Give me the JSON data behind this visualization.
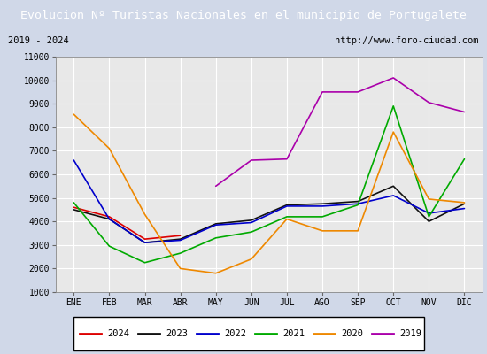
{
  "title": "Evolucion Nº Turistas Nacionales en el municipio de Portugalete",
  "subtitle_left": "2019 - 2024",
  "subtitle_right": "http://www.foro-ciudad.com",
  "months": [
    "ENE",
    "FEB",
    "MAR",
    "ABR",
    "MAY",
    "JUN",
    "JUL",
    "AGO",
    "SEP",
    "OCT",
    "NOV",
    "DIC"
  ],
  "ylim": [
    1000,
    11000
  ],
  "yticks": [
    1000,
    2000,
    3000,
    4000,
    5000,
    6000,
    7000,
    8000,
    9000,
    10000,
    11000
  ],
  "series": {
    "2024": {
      "color": "#dd0000",
      "data": [
        4600,
        4200,
        3250,
        3400,
        null,
        null,
        null,
        null,
        null,
        null,
        null,
        null
      ]
    },
    "2023": {
      "color": "#111111",
      "data": [
        4500,
        4100,
        3100,
        3250,
        3900,
        4050,
        4700,
        4750,
        4850,
        5500,
        4000,
        4750
      ]
    },
    "2022": {
      "color": "#0000cc",
      "data": [
        6600,
        4100,
        3100,
        3200,
        3850,
        3950,
        4650,
        4650,
        4750,
        5100,
        4350,
        4550
      ]
    },
    "2021": {
      "color": "#00aa00",
      "data": [
        4800,
        2950,
        2250,
        2650,
        3300,
        3550,
        4200,
        4200,
        4700,
        8900,
        4200,
        6650
      ]
    },
    "2020": {
      "color": "#ee8800",
      "data": [
        8550,
        7100,
        4300,
        2000,
        1800,
        2400,
        4100,
        3600,
        3600,
        7800,
        4950,
        4800
      ]
    },
    "2019": {
      "color": "#aa00aa",
      "data": [
        null,
        null,
        null,
        null,
        5500,
        6600,
        6650,
        9500,
        9500,
        10100,
        9050,
        8650
      ]
    }
  },
  "title_bg_color": "#4472c4",
  "title_font_color": "#ffffff",
  "plot_bg_color": "#e8e8e8",
  "outer_bg_color": "#d0d8e8",
  "grid_color": "#ffffff",
  "title_fontsize": 9.5,
  "subtitle_fontsize": 7.5,
  "tick_fontsize": 7,
  "legend_fontsize": 7.5,
  "legend_order": [
    "2024",
    "2023",
    "2022",
    "2021",
    "2020",
    "2019"
  ]
}
